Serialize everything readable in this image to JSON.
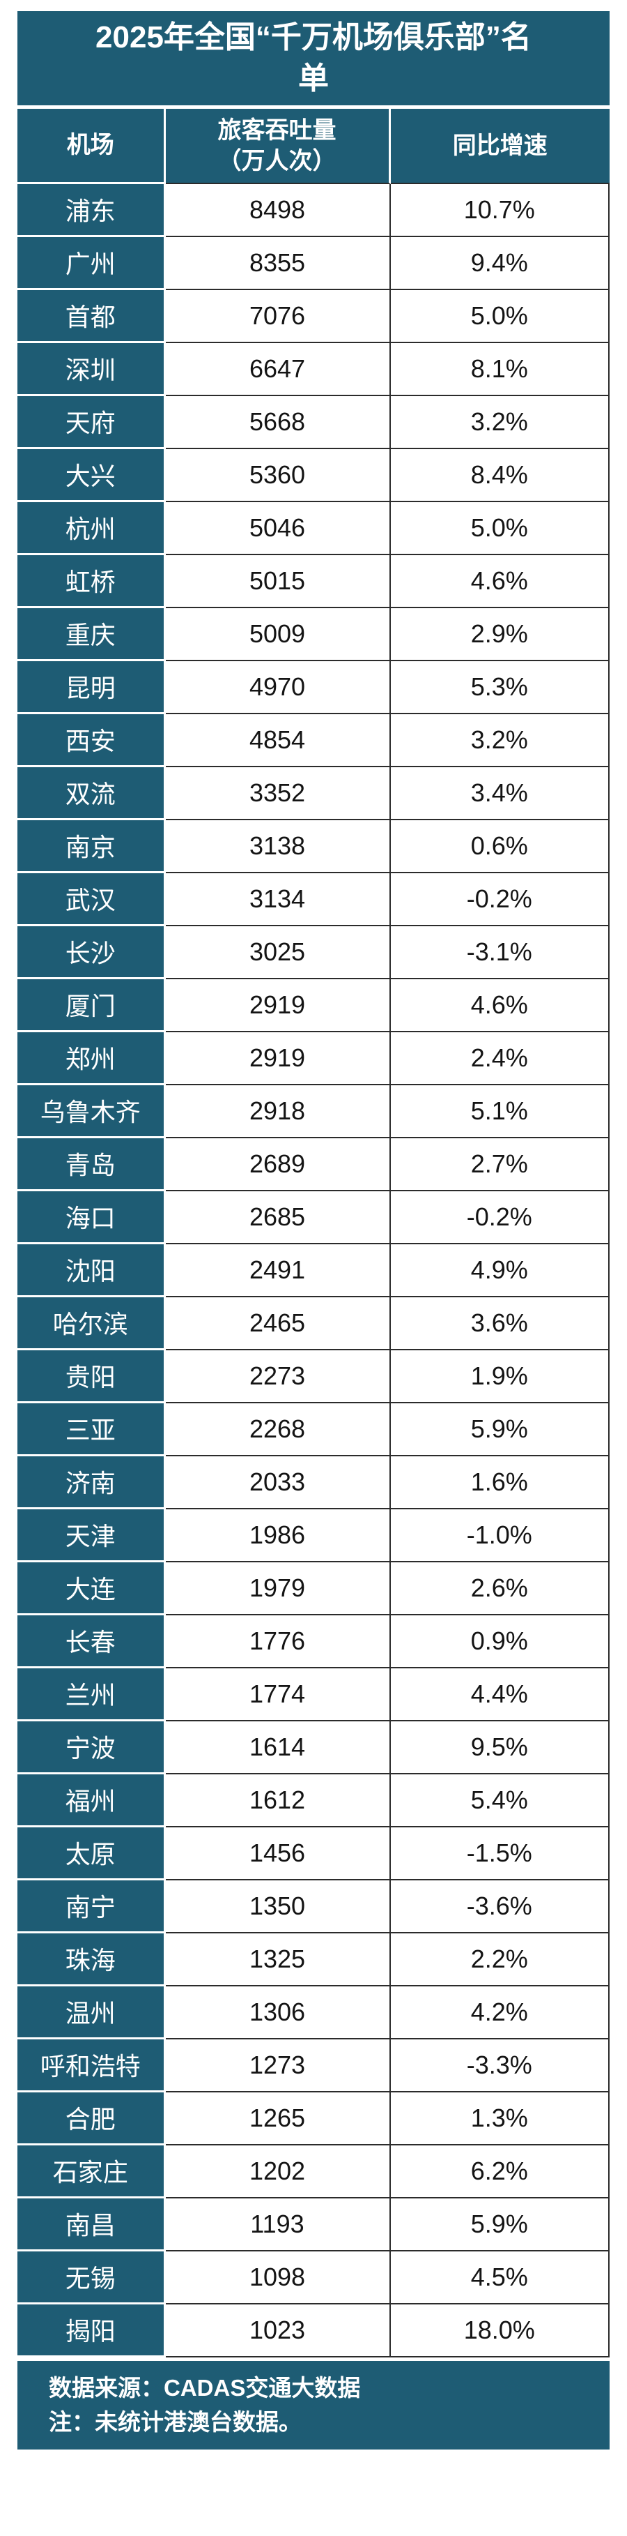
{
  "title": "2025年全国“千万机场俱乐部”名单",
  "header": {
    "airport": "机场",
    "throughput": "旅客吞吐量\n（万人次）",
    "growth": "同比增速"
  },
  "footer": {
    "source": "数据来源：CADAS交通大数据",
    "note": "注：未统计港澳台数据。"
  },
  "colors": {
    "teal": "#1E5C74",
    "grid": "#2B2B2B",
    "header_text": "#FFFFFF",
    "cell_text": "#141414"
  },
  "chart_data": {
    "type": "table",
    "title": "2025年全国“千万机场俱乐部”名单",
    "columns": [
      "机场",
      "旅客吞吐量（万人次）",
      "同比增速"
    ],
    "rows": [
      [
        "浦东",
        8498,
        "10.7%"
      ],
      [
        "广州",
        8355,
        "9.4%"
      ],
      [
        "首都",
        7076,
        "5.0%"
      ],
      [
        "深圳",
        6647,
        "8.1%"
      ],
      [
        "天府",
        5668,
        "3.2%"
      ],
      [
        "大兴",
        5360,
        "8.4%"
      ],
      [
        "杭州",
        5046,
        "5.0%"
      ],
      [
        "虹桥",
        5015,
        "4.6%"
      ],
      [
        "重庆",
        5009,
        "2.9%"
      ],
      [
        "昆明",
        4970,
        "5.3%"
      ],
      [
        "西安",
        4854,
        "3.2%"
      ],
      [
        "双流",
        3352,
        "3.4%"
      ],
      [
        "南京",
        3138,
        "0.6%"
      ],
      [
        "武汉",
        3134,
        "-0.2%"
      ],
      [
        "长沙",
        3025,
        "-3.1%"
      ],
      [
        "厦门",
        2919,
        "4.6%"
      ],
      [
        "郑州",
        2919,
        "2.4%"
      ],
      [
        "乌鲁木齐",
        2918,
        "5.1%"
      ],
      [
        "青岛",
        2689,
        "2.7%"
      ],
      [
        "海口",
        2685,
        "-0.2%"
      ],
      [
        "沈阳",
        2491,
        "4.9%"
      ],
      [
        "哈尔滨",
        2465,
        "3.6%"
      ],
      [
        "贵阳",
        2273,
        "1.9%"
      ],
      [
        "三亚",
        2268,
        "5.9%"
      ],
      [
        "济南",
        2033,
        "1.6%"
      ],
      [
        "天津",
        1986,
        "-1.0%"
      ],
      [
        "大连",
        1979,
        "2.6%"
      ],
      [
        "长春",
        1776,
        "0.9%"
      ],
      [
        "兰州",
        1774,
        "4.4%"
      ],
      [
        "宁波",
        1614,
        "9.5%"
      ],
      [
        "福州",
        1612,
        "5.4%"
      ],
      [
        "太原",
        1456,
        "-1.5%"
      ],
      [
        "南宁",
        1350,
        "-3.6%"
      ],
      [
        "珠海",
        1325,
        "2.2%"
      ],
      [
        "温州",
        1306,
        "4.2%"
      ],
      [
        "呼和浩特",
        1273,
        "-3.3%"
      ],
      [
        "合肥",
        1265,
        "1.3%"
      ],
      [
        "石家庄",
        1202,
        "6.2%"
      ],
      [
        "南昌",
        1193,
        "5.9%"
      ],
      [
        "无锡",
        1098,
        "4.5%"
      ],
      [
        "揭阳",
        1023,
        "18.0%"
      ]
    ],
    "notes": [
      "数据来源：CADAS交通大数据",
      "注：未统计港澳台数据。"
    ]
  }
}
